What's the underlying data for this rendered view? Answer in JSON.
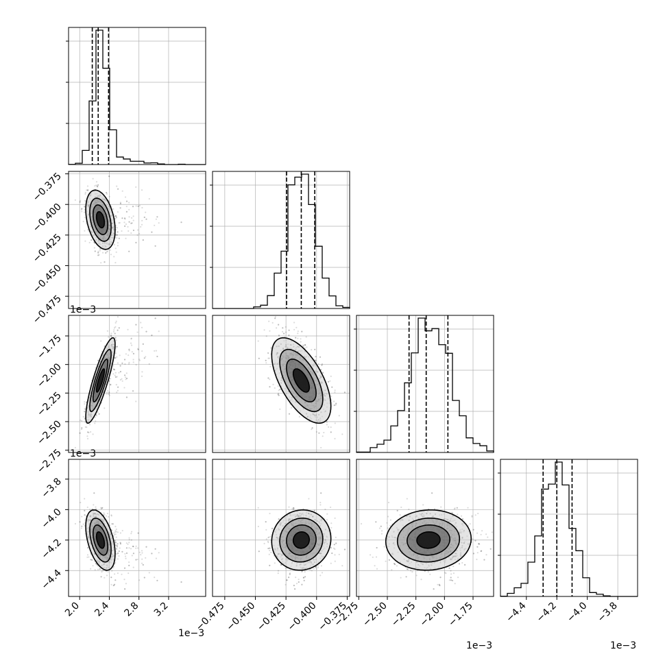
{
  "chart_data": {
    "type": "scatter",
    "subtype": "corner-plot",
    "title": "",
    "parameters": [
      {
        "range": [
          1.85,
          3.7
        ],
        "ticks": [
          2.0,
          2.4,
          2.8,
          3.2
        ],
        "tick_labels": [
          "2.0",
          "2.4",
          "2.8",
          "3.2"
        ],
        "offset_label": "1e−3",
        "quantiles": [
          2.17,
          2.25,
          2.39
        ],
        "mean": 2.28,
        "sd": 0.09
      },
      {
        "range": [
          -0.485,
          -0.373
        ],
        "ticks": [
          -0.475,
          -0.45,
          -0.425,
          -0.4,
          -0.375
        ],
        "tick_labels": [
          "−0.475",
          "−0.450",
          "−0.425",
          "−0.400",
          "−0.375"
        ],
        "offset_label": "",
        "quantiles": [
          -0.4245,
          -0.4125,
          -0.4015
        ],
        "mean": -0.4125,
        "sd": 0.011
      },
      {
        "range": [
          -2.77,
          -1.57
        ],
        "ticks": [
          -2.75,
          -2.5,
          -2.25,
          -2.0,
          -1.75
        ],
        "tick_labels": [
          "−2.75",
          "−2.50",
          "−2.25",
          "−2.00",
          "−1.75"
        ],
        "offset_label": "1e−3",
        "quantiles": [
          -2.31,
          -2.16,
          -1.97
        ],
        "mean": -2.14,
        "sd": 0.17
      },
      {
        "range": [
          -4.57,
          -3.67
        ],
        "ticks": [
          -4.4,
          -4.2,
          -4.0,
          -3.8
        ],
        "tick_labels": [
          "−4.4",
          "−4.2",
          "−4.0",
          "−3.8"
        ],
        "offset_label": "1e−3",
        "quantiles": [
          -4.29,
          -4.2,
          -4.1
        ],
        "mean": -4.2,
        "sd": 0.09
      }
    ],
    "correlations": [
      [
        1,
        -0.35,
        0.85,
        -0.45
      ],
      [
        -0.35,
        1,
        -0.6,
        0.05
      ],
      [
        0.85,
        -0.6,
        1,
        0.05
      ],
      [
        -0.45,
        0.05,
        0.05,
        1
      ]
    ],
    "contour_levels": 4,
    "grid": true,
    "quantile_line_style": "dashed"
  },
  "colors": {
    "axis": "#000000",
    "grid": "#b0b0b0",
    "points": "#000000",
    "contours": "#000000"
  }
}
